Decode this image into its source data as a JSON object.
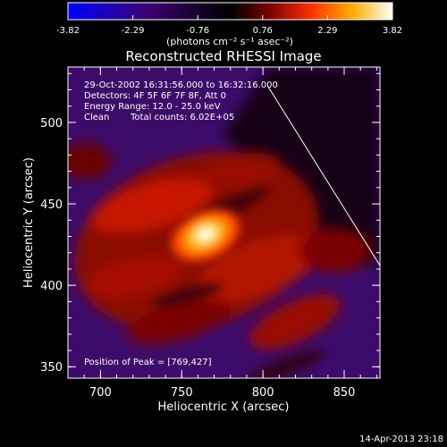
{
  "chart_data": {
    "type": "heatmap",
    "title": "Reconstructed RHESSI Image",
    "xlabel": "Heliocentric X (arcsec)",
    "ylabel": "Heliocentric Y (arcsec)",
    "xlim": [
      680,
      872
    ],
    "ylim": [
      343,
      534
    ],
    "xticks": [
      700,
      750,
      800,
      850
    ],
    "yticks": [
      350,
      400,
      450,
      500
    ],
    "colorbar": {
      "range": [
        -3.82,
        3.82
      ],
      "ticks": [
        "-3.82",
        "-2.29",
        "-0.76",
        "0.76",
        "2.29",
        "3.82"
      ],
      "unit_label": "(photons cm⁻² s⁻¹ asec⁻²)",
      "colors": [
        "#0000ff",
        "#3a0070",
        "#000000",
        "#7a0000",
        "#ff3000",
        "#ffb000",
        "#ffffff"
      ]
    },
    "annotations": {
      "time_range": "29-Oct-2002 16:31:56.000 to 16:32:16.000",
      "detectors": "Detectors: 4F 5F 6F 7F 8F, Att 0",
      "energy": "Energy Range: 12.0 - 25.0 keV",
      "clean": "Clean",
      "counts": "Total counts: 6.02E+05",
      "peak": "Position of Peak = [769,427]"
    },
    "peak": {
      "x": 769,
      "y": 427
    },
    "timestamp": "14-Apr-2013 23:18"
  }
}
